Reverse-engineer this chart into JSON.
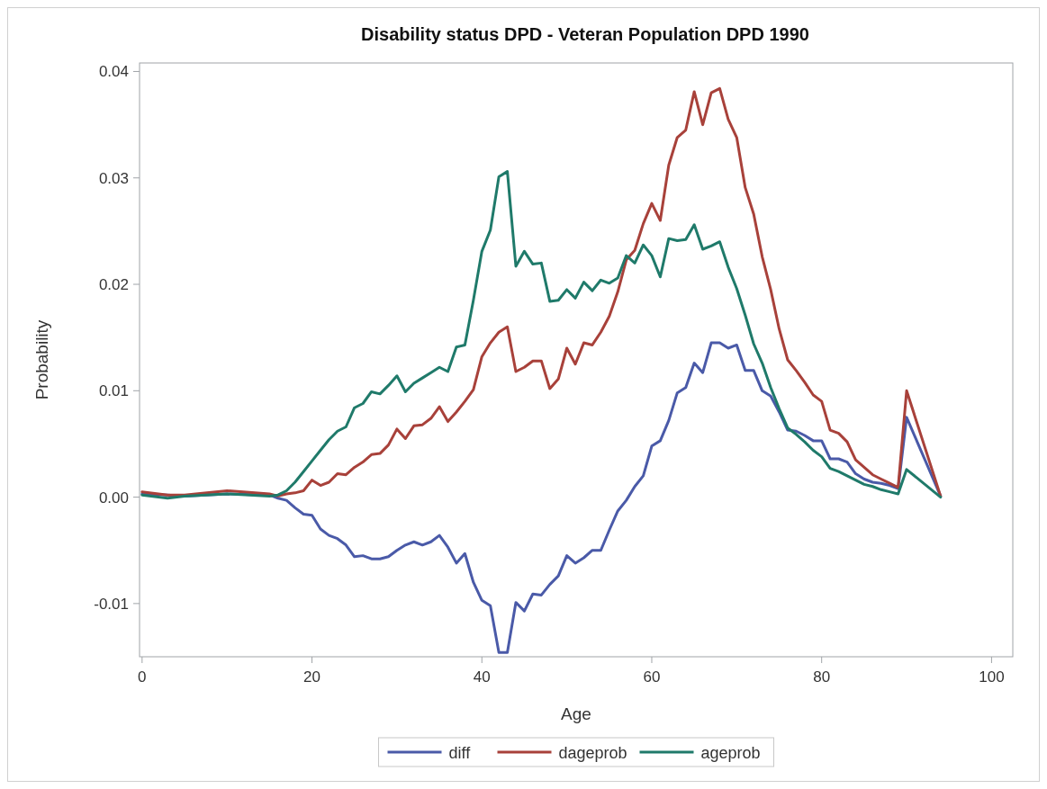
{
  "chart_data": {
    "type": "line",
    "title": "Disability status DPD - Veteran Population DPD 1990",
    "xlabel": "Age",
    "ylabel": "Probability",
    "x": [
      0,
      3,
      5,
      10,
      15,
      16,
      17,
      18,
      19,
      20,
      21,
      22,
      23,
      24,
      25,
      26,
      27,
      28,
      29,
      30,
      31,
      32,
      33,
      34,
      35,
      36,
      37,
      38,
      39,
      40,
      41,
      42,
      43,
      44,
      45,
      46,
      47,
      48,
      49,
      50,
      51,
      52,
      53,
      54,
      55,
      56,
      57,
      58,
      59,
      60,
      61,
      62,
      63,
      64,
      65,
      66,
      67,
      68,
      69,
      70,
      71,
      72,
      73,
      74,
      75,
      76,
      77,
      78,
      79,
      80,
      81,
      82,
      83,
      84,
      85,
      86,
      87,
      88,
      89,
      90,
      94
    ],
    "series": [
      {
        "name": "diff",
        "color": "#4a5aa8",
        "values": [
          0.0003,
          0.0002,
          0.0001,
          0.0003,
          0.0002,
          -0.0001,
          -0.0003,
          -0.001,
          -0.0016,
          -0.0017,
          -0.003,
          -0.0036,
          -0.0039,
          -0.0045,
          -0.0056,
          -0.0055,
          -0.0058,
          -0.0058,
          -0.0056,
          -0.005,
          -0.0045,
          -0.0042,
          -0.0045,
          -0.0042,
          -0.0036,
          -0.0047,
          -0.0062,
          -0.0053,
          -0.008,
          -0.0097,
          -0.0102,
          -0.0146,
          -0.0146,
          -0.0099,
          -0.0107,
          -0.0091,
          -0.0092,
          -0.0082,
          -0.0074,
          -0.0055,
          -0.0062,
          -0.0057,
          -0.005,
          -0.005,
          -0.0031,
          -0.0013,
          -0.0003,
          0.001,
          0.002,
          0.0048,
          0.0053,
          0.0072,
          0.0098,
          0.0103,
          0.0126,
          0.0117,
          0.0145,
          0.0145,
          0.014,
          0.0143,
          0.0119,
          0.0119,
          0.01,
          0.0095,
          0.008,
          0.0063,
          0.0062,
          0.0058,
          0.0053,
          0.0053,
          0.0036,
          0.0036,
          0.0033,
          0.0022,
          0.0017,
          0.0014,
          0.0013,
          0.0011,
          0.0008,
          0.0075,
          0.0001
        ]
      },
      {
        "name": "dageprob",
        "color": "#a8413a",
        "values": [
          0.0005,
          0.0002,
          0.0002,
          0.0006,
          0.0003,
          0.0001,
          0.0003,
          0.0004,
          0.0006,
          0.0016,
          0.0011,
          0.0014,
          0.0022,
          0.0021,
          0.0028,
          0.0033,
          0.004,
          0.0041,
          0.0049,
          0.0064,
          0.0055,
          0.0067,
          0.0068,
          0.0074,
          0.0085,
          0.0071,
          0.008,
          0.009,
          0.0101,
          0.0132,
          0.0145,
          0.0155,
          0.016,
          0.0118,
          0.0122,
          0.0128,
          0.0128,
          0.0102,
          0.0111,
          0.014,
          0.0125,
          0.0145,
          0.0143,
          0.0155,
          0.017,
          0.0193,
          0.0223,
          0.0232,
          0.0257,
          0.0276,
          0.026,
          0.0312,
          0.0338,
          0.0345,
          0.0381,
          0.035,
          0.038,
          0.0384,
          0.0355,
          0.0338,
          0.0291,
          0.0266,
          0.0226,
          0.0195,
          0.0158,
          0.0129,
          0.0119,
          0.0108,
          0.0096,
          0.009,
          0.0063,
          0.006,
          0.0052,
          0.0035,
          0.0028,
          0.0021,
          0.0017,
          0.0013,
          0.0009,
          0.01,
          0.0001
        ]
      },
      {
        "name": "ageprob",
        "color": "#1f7a6a",
        "values": [
          0.0002,
          -0.0001,
          0.0001,
          0.0003,
          0.0001,
          0.0002,
          0.0006,
          0.0014,
          0.0024,
          0.0034,
          0.0044,
          0.0054,
          0.0062,
          0.0066,
          0.0084,
          0.0088,
          0.0099,
          0.0097,
          0.0105,
          0.0114,
          0.0099,
          0.0107,
          0.0112,
          0.0117,
          0.0122,
          0.0118,
          0.0141,
          0.0143,
          0.0185,
          0.0231,
          0.0251,
          0.0301,
          0.0306,
          0.0217,
          0.0231,
          0.0219,
          0.022,
          0.0184,
          0.0185,
          0.0195,
          0.0187,
          0.0202,
          0.0194,
          0.0204,
          0.0201,
          0.0206,
          0.0227,
          0.022,
          0.0237,
          0.0227,
          0.0207,
          0.0243,
          0.0241,
          0.0242,
          0.0256,
          0.0233,
          0.0236,
          0.024,
          0.0216,
          0.0196,
          0.0171,
          0.0144,
          0.0126,
          0.0103,
          0.0083,
          0.0065,
          0.0059,
          0.0052,
          0.0044,
          0.0038,
          0.0027,
          0.0024,
          0.002,
          0.0016,
          0.0012,
          0.001,
          0.0007,
          0.0005,
          0.0003,
          0.0026,
          0
        ]
      }
    ],
    "xlim": [
      -0.3,
      102.5
    ],
    "ylim": [
      -0.015,
      0.0408
    ],
    "xticks": [
      0,
      20,
      40,
      60,
      80,
      100
    ],
    "yticks": [
      {
        "value": -0.01,
        "label": "-0.01"
      },
      {
        "value": 0,
        "label": "0.00"
      },
      {
        "value": 0.01,
        "label": "0.01"
      },
      {
        "value": 0.02,
        "label": "0.02"
      },
      {
        "value": 0.03,
        "label": "0.03"
      },
      {
        "value": 0.04,
        "label": "0.04"
      }
    ],
    "grid": false,
    "legend": "bottom",
    "line_style": "solid",
    "marker": "none"
  }
}
